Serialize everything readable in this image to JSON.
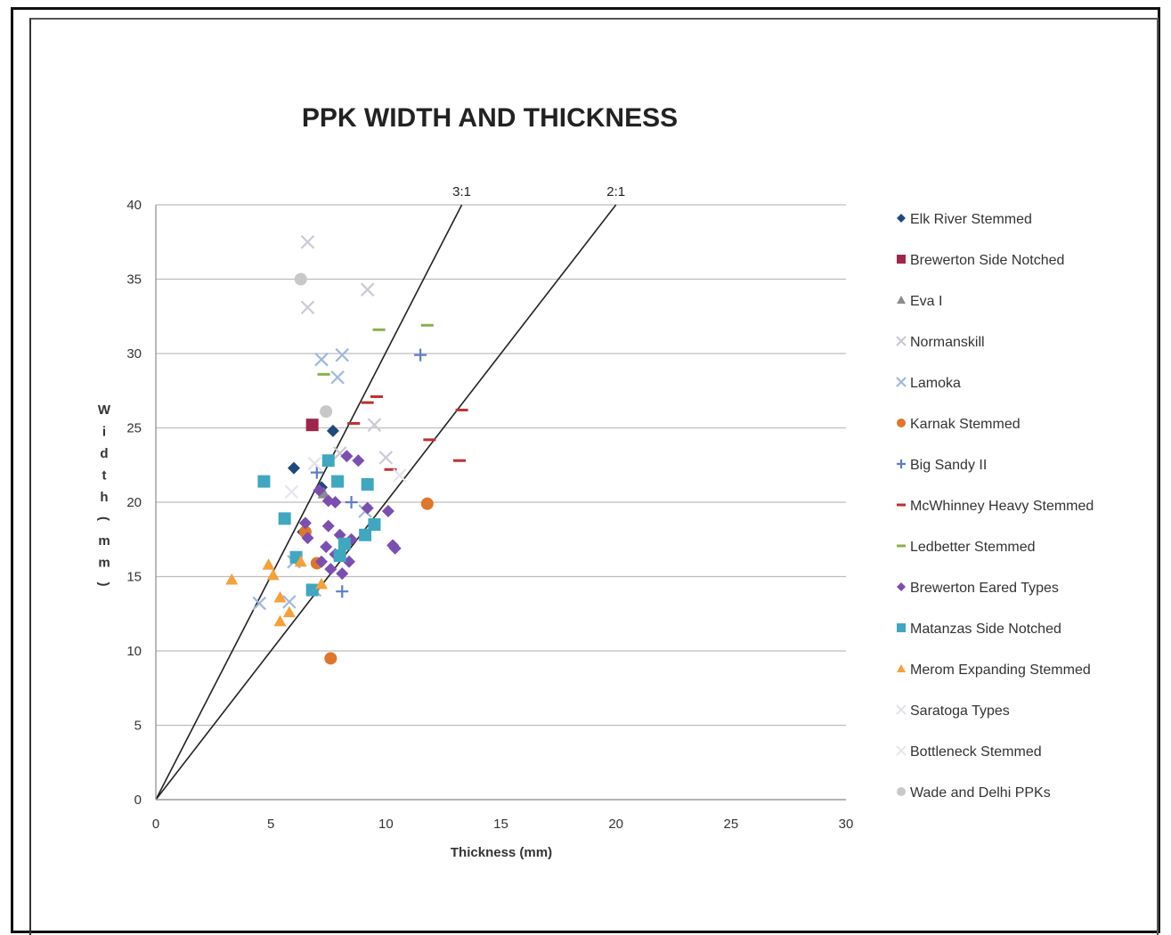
{
  "chart_data": {
    "type": "scatter",
    "title": "PPK WIDTH AND THICKNESS",
    "xlabel": "Thickness (mm)",
    "ylabel": "Width (mm)",
    "xlim": [
      0,
      30
    ],
    "ylim": [
      0,
      40
    ],
    "xticks": [
      0,
      5,
      10,
      15,
      20,
      25,
      30
    ],
    "yticks": [
      0,
      5,
      10,
      15,
      20,
      25,
      30,
      35,
      40
    ],
    "grid": "horizontal",
    "legend_position": "right",
    "reference_lines": [
      {
        "label": "3:1",
        "x": [
          0,
          13.3
        ],
        "y": [
          0,
          40
        ]
      },
      {
        "label": "2:1",
        "x": [
          0,
          20
        ],
        "y": [
          0,
          40
        ]
      }
    ],
    "series": [
      {
        "name": "Elk River Stemmed",
        "marker": "diamond",
        "color": "#1f497d",
        "points": [
          [
            6.0,
            22.3
          ],
          [
            7.7,
            24.8
          ],
          [
            7.2,
            21.0
          ],
          [
            6.4,
            18.0
          ]
        ]
      },
      {
        "name": "Brewerton Side Notched",
        "marker": "square",
        "color": "#a0254b",
        "points": [
          [
            6.8,
            25.2
          ]
        ]
      },
      {
        "name": "Eva I",
        "marker": "triangle",
        "color": "#8c8c8c",
        "points": [
          [
            7.3,
            20.6
          ]
        ]
      },
      {
        "name": "Normanskill",
        "marker": "x",
        "color": "#c9c9d9",
        "points": [
          [
            6.6,
            37.5
          ],
          [
            6.6,
            33.1
          ],
          [
            9.2,
            34.3
          ],
          [
            9.5,
            25.2
          ],
          [
            10.0,
            23.0
          ],
          [
            8.0,
            23.3
          ]
        ]
      },
      {
        "name": "Lamoka",
        "marker": "x",
        "color": "#9fb8dd",
        "points": [
          [
            7.2,
            29.6
          ],
          [
            8.1,
            29.9
          ],
          [
            7.9,
            28.4
          ],
          [
            9.1,
            19.4
          ],
          [
            4.5,
            13.2
          ],
          [
            5.8,
            13.3
          ],
          [
            6.0,
            16.0
          ],
          [
            6.9,
            14.1
          ]
        ]
      },
      {
        "name": "Karnak Stemmed",
        "marker": "circle",
        "color": "#e0762a",
        "points": [
          [
            11.8,
            19.9
          ],
          [
            7.6,
            9.5
          ],
          [
            7.0,
            15.9
          ],
          [
            6.5,
            18.0
          ]
        ]
      },
      {
        "name": "Big Sandy II",
        "marker": "plus",
        "color": "#5b7ec8",
        "points": [
          [
            11.5,
            29.9
          ],
          [
            8.1,
            14.0
          ],
          [
            7.0,
            22.0
          ],
          [
            8.5,
            20.0
          ]
        ]
      },
      {
        "name": "McWhinney Heavy Stemmed",
        "marker": "dash",
        "color": "#c03030",
        "points": [
          [
            9.6,
            27.1
          ],
          [
            9.2,
            26.7
          ],
          [
            8.6,
            25.3
          ],
          [
            10.2,
            22.2
          ],
          [
            11.9,
            24.2
          ],
          [
            13.3,
            26.2
          ],
          [
            13.2,
            22.8
          ]
        ]
      },
      {
        "name": "Ledbetter Stemmed",
        "marker": "dash",
        "color": "#8cb04a",
        "points": [
          [
            9.7,
            31.6
          ],
          [
            11.8,
            31.9
          ],
          [
            7.3,
            28.6
          ]
        ]
      },
      {
        "name": "Brewerton Eared Types",
        "marker": "diamond",
        "color": "#7b4fb0",
        "points": [
          [
            7.1,
            20.8
          ],
          [
            7.5,
            20.1
          ],
          [
            7.8,
            20.0
          ],
          [
            8.3,
            23.1
          ],
          [
            8.8,
            22.8
          ],
          [
            6.5,
            18.6
          ],
          [
            7.5,
            18.4
          ],
          [
            8.0,
            17.8
          ],
          [
            8.5,
            17.5
          ],
          [
            7.4,
            17.0
          ],
          [
            7.8,
            16.5
          ],
          [
            7.2,
            16.0
          ],
          [
            7.6,
            15.5
          ],
          [
            8.1,
            15.2
          ],
          [
            8.4,
            16.0
          ],
          [
            9.2,
            19.6
          ],
          [
            10.1,
            19.4
          ],
          [
            10.3,
            17.1
          ],
          [
            10.4,
            16.9
          ],
          [
            6.6,
            17.6
          ]
        ]
      },
      {
        "name": "Matanzas Side Notched",
        "marker": "square",
        "color": "#3fa7c0",
        "points": [
          [
            4.7,
            21.4
          ],
          [
            5.6,
            18.9
          ],
          [
            6.1,
            16.3
          ],
          [
            7.9,
            21.4
          ],
          [
            9.2,
            21.2
          ],
          [
            7.5,
            22.8
          ],
          [
            8.2,
            17.2
          ],
          [
            8.0,
            16.4
          ],
          [
            9.1,
            17.8
          ],
          [
            9.5,
            18.5
          ],
          [
            6.8,
            14.1
          ]
        ]
      },
      {
        "name": "Merom Expanding Stemmed",
        "marker": "triangle",
        "color": "#f5a03a",
        "points": [
          [
            3.3,
            14.8
          ],
          [
            4.9,
            15.8
          ],
          [
            5.1,
            15.1
          ],
          [
            5.4,
            13.6
          ],
          [
            5.4,
            12.0
          ],
          [
            5.8,
            12.6
          ],
          [
            7.2,
            14.5
          ],
          [
            6.3,
            16.0
          ]
        ]
      },
      {
        "name": "Saratoga Types",
        "marker": "x",
        "color": "#e3e3ea",
        "points": [
          [
            6.9,
            22.6
          ],
          [
            10.6,
            21.8
          ]
        ]
      },
      {
        "name": "Bottleneck Stemmed",
        "marker": "x",
        "color": "#e6e6ee",
        "points": [
          [
            5.9,
            20.7
          ]
        ]
      },
      {
        "name": "Wade and Delhi PPKs",
        "marker": "circle",
        "color": "#c8c8c8",
        "points": [
          [
            6.3,
            35.0
          ],
          [
            7.4,
            26.1
          ]
        ]
      }
    ]
  }
}
